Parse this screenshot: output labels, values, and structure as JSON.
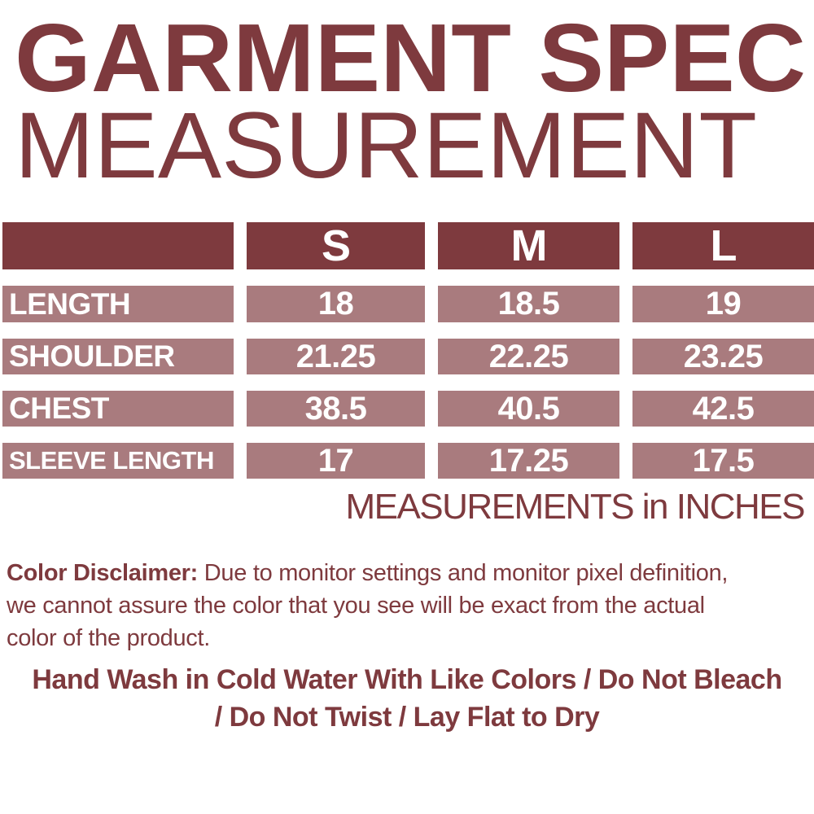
{
  "title": "GARMENT SPEC",
  "subtitle": "MEASUREMENT",
  "table": {
    "size_headers": [
      "S",
      "M",
      "L"
    ],
    "rows": [
      {
        "label": "LENGTH",
        "values": [
          "18",
          "18.5",
          "19"
        ]
      },
      {
        "label": "SHOULDER",
        "values": [
          "21.25",
          "22.25",
          "23.25"
        ]
      },
      {
        "label": "CHEST",
        "values": [
          "38.5",
          "40.5",
          "42.5"
        ]
      },
      {
        "label": "SLEEVE LENGTH",
        "values": [
          "17",
          "17.25",
          "17.5"
        ]
      }
    ],
    "unit_note": "MEASUREMENTS in INCHES"
  },
  "disclaimer": {
    "bold_label": "Color Disclaimer:",
    "line1_rest": " Due to monitor settings and monitor pixel definition,",
    "line2": "we cannot assure the color that you see will be exact from the actual",
    "line3": "color of the product."
  },
  "care": {
    "line1": "Hand Wash in Cold Water With Like Colors / Do Not Bleach",
    "line2": "/ Do Not Twist / Lay Flat to Dry"
  },
  "colors": {
    "dark_maroon": "#7E3A3E",
    "dusty_rose": "#A97B7E",
    "cell_text": "#FFFFFF",
    "background": "#FFFFFF"
  }
}
